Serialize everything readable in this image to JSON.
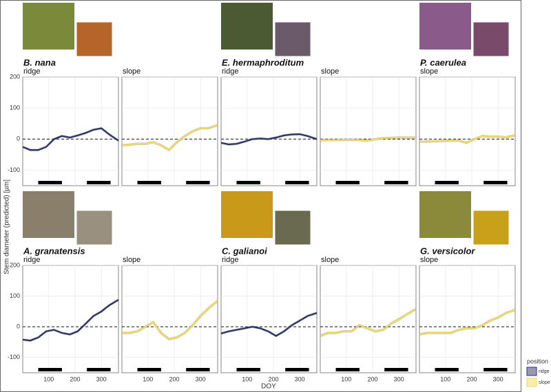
{
  "chart_data": {
    "type": "line",
    "y_label": "Stem diameter (predicted) [µm]",
    "x_label": "DOY",
    "xlim": [
      1,
      365
    ],
    "xticks": [
      100,
      200,
      300
    ],
    "ylim": [
      -150,
      200
    ],
    "yticks": [
      -100,
      0,
      100,
      200
    ],
    "reference_line": 0,
    "grid": true,
    "periods": [
      [
        60,
        150
      ],
      [
        245,
        335
      ]
    ],
    "x": [
      1,
      30,
      60,
      90,
      120,
      150,
      180,
      210,
      240,
      270,
      300,
      330,
      365
    ],
    "legend_title": "position",
    "series": [
      {
        "name": "ridge",
        "color": "#2b3366"
      },
      {
        "name": "slope",
        "color": "#f2dc5a"
      }
    ],
    "species": [
      {
        "name": "B. nana",
        "panels": [
          {
            "position": "ridge",
            "color": "#2b3366",
            "values": [
              -25,
              -35,
              -35,
              -25,
              0,
              10,
              5,
              12,
              20,
              30,
              35,
              15,
              -5
            ]
          },
          {
            "position": "slope",
            "color": "#f2dc5a",
            "values": [
              -20,
              -18,
              -15,
              -15,
              -10,
              -20,
              -35,
              -10,
              10,
              25,
              35,
              35,
              45
            ]
          }
        ]
      },
      {
        "name": "E. hermaphroditum",
        "panels": [
          {
            "position": "ridge",
            "color": "#2b3366",
            "values": [
              -12,
              -17,
              -15,
              -8,
              0,
              2,
              0,
              5,
              12,
              15,
              16,
              10,
              0
            ]
          },
          {
            "position": "slope",
            "color": "#f2dc5a",
            "values": [
              -3,
              -3,
              -3,
              -2,
              -2,
              -3,
              -5,
              0,
              3,
              4,
              5,
              5,
              5
            ]
          }
        ]
      },
      {
        "name": "P. caerulea",
        "panels": [
          {
            "position": "slope",
            "color": "#f2dc5a",
            "values": [
              -8,
              -8,
              -7,
              -6,
              -5,
              -5,
              -12,
              0,
              10,
              8,
              8,
              6,
              12
            ]
          }
        ]
      },
      {
        "name": "A. granatensis",
        "panels": [
          {
            "position": "ridge",
            "color": "#2b3366",
            "values": [
              -42,
              -45,
              -35,
              -15,
              -10,
              -20,
              -25,
              -15,
              10,
              35,
              50,
              70,
              88
            ]
          },
          {
            "position": "slope",
            "color": "#f2dc5a",
            "values": [
              -20,
              -20,
              -15,
              0,
              15,
              -20,
              -40,
              -35,
              -20,
              5,
              35,
              60,
              85
            ]
          }
        ]
      },
      {
        "name": "C. galianoi",
        "panels": [
          {
            "position": "ridge",
            "color": "#2b3366",
            "values": [
              -22,
              -15,
              -10,
              -5,
              0,
              -5,
              -15,
              -30,
              -15,
              5,
              20,
              35,
              45
            ]
          },
          {
            "position": "slope",
            "color": "#f2dc5a",
            "values": [
              -30,
              -20,
              -20,
              -15,
              -15,
              5,
              -5,
              -15,
              -10,
              10,
              25,
              40,
              58
            ]
          }
        ]
      },
      {
        "name": "G. versicolor",
        "panels": [
          {
            "position": "slope",
            "color": "#f2dc5a",
            "values": [
              -25,
              -20,
              -20,
              -20,
              -20,
              -10,
              -5,
              -5,
              5,
              20,
              30,
              45,
              55
            ]
          }
        ]
      }
    ]
  }
}
